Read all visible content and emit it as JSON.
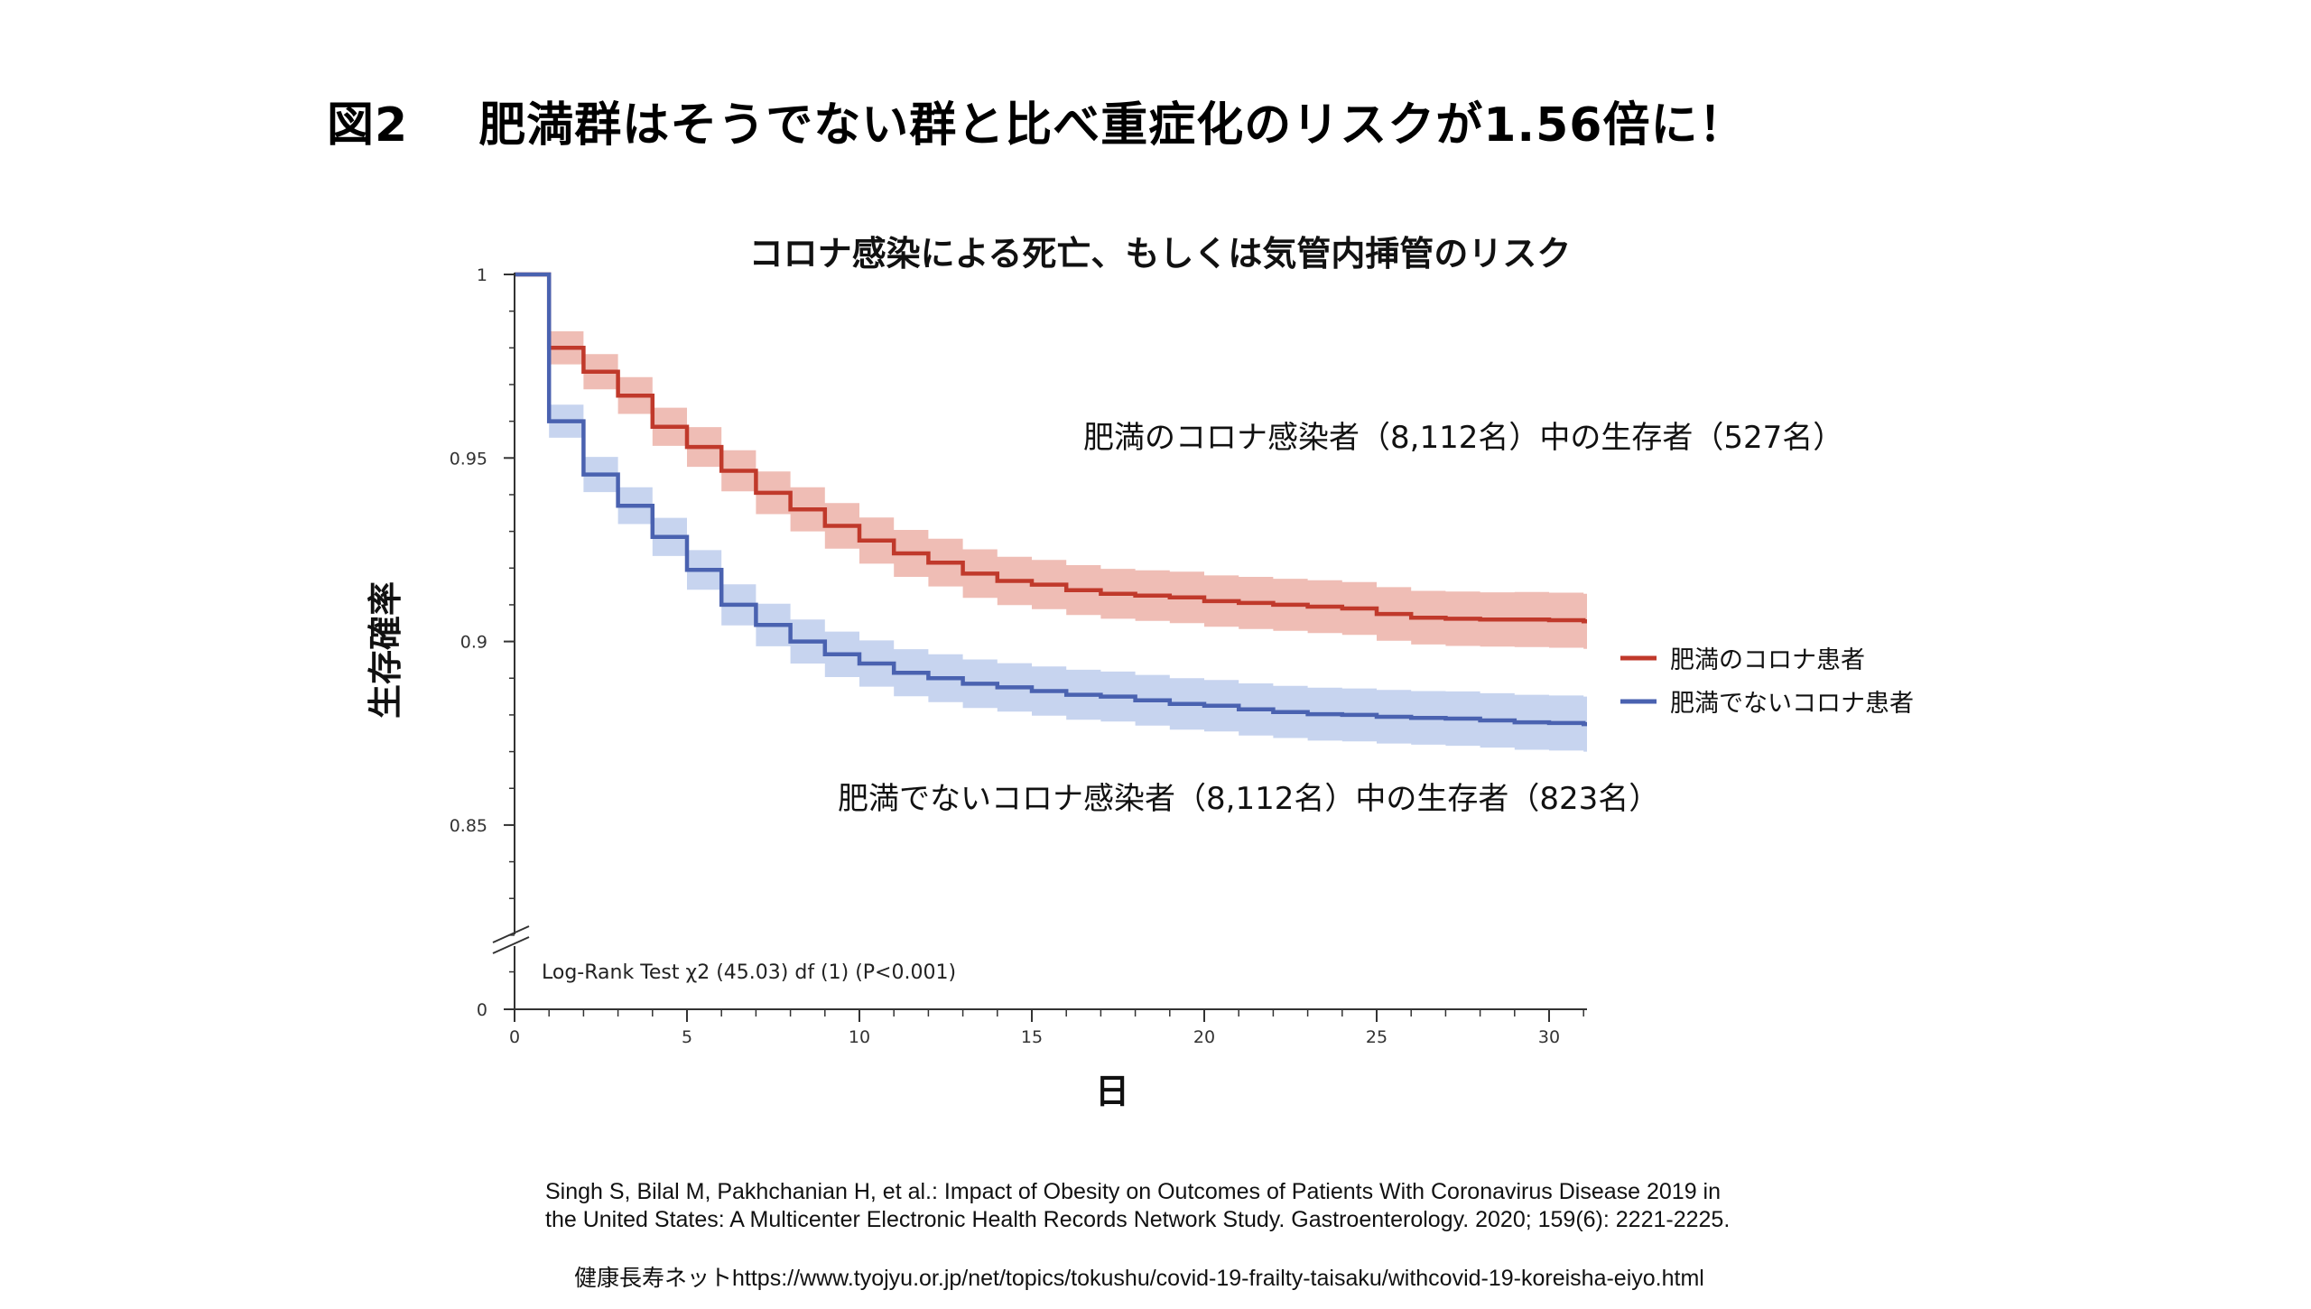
{
  "figure_label": "図2",
  "figure_title": "肥満群はそうでない群と比べ重症化のリスクが1.56倍に！",
  "chart_data": {
    "type": "line",
    "title": "コロナ感染による死亡、もしくは気管内挿管のリスク",
    "xlabel": "日",
    "ylabel": "生存確率",
    "xlim": [
      0,
      31
    ],
    "ylim": [
      0.8,
      1.0
    ],
    "y_axis_break": true,
    "x_ticks": [
      0,
      5,
      10,
      15,
      20,
      25,
      30
    ],
    "y_ticks": [
      1,
      0.95,
      0.9,
      0.85,
      0
    ],
    "y_tick_labels": [
      "1",
      "0.95",
      "0.9",
      "0.85",
      "0"
    ],
    "step": true,
    "legend": {
      "placement": "right"
    },
    "series": [
      {
        "name": "肥満のコロナ患者",
        "color": "#c0392b",
        "band_color": "#e9a79c",
        "x": [
          0,
          1,
          2,
          3,
          4,
          5,
          6,
          7,
          8,
          9,
          10,
          11,
          12,
          13,
          14,
          15,
          16,
          17,
          18,
          19,
          20,
          21,
          22,
          23,
          24,
          25,
          26,
          27,
          28,
          29,
          30,
          31
        ],
        "values": [
          1.0,
          0.98,
          0.9735,
          0.967,
          0.9585,
          0.953,
          0.9465,
          0.9405,
          0.936,
          0.9315,
          0.9275,
          0.924,
          0.9215,
          0.9185,
          0.9165,
          0.9155,
          0.914,
          0.913,
          0.9125,
          0.912,
          0.911,
          0.9105,
          0.91,
          0.9095,
          0.909,
          0.9075,
          0.9065,
          0.9062,
          0.906,
          0.906,
          0.9058,
          0.9055
        ],
        "band": [
          0.004,
          0.0045,
          0.0048,
          0.005,
          0.0052,
          0.0054,
          0.0056,
          0.0058,
          0.006,
          0.0062,
          0.0063,
          0.0064,
          0.0065,
          0.0066,
          0.0066,
          0.0067,
          0.0068,
          0.0068,
          0.0069,
          0.007,
          0.007,
          0.0071,
          0.0071,
          0.0072,
          0.0072,
          0.0073,
          0.0073,
          0.0074,
          0.0074,
          0.0075,
          0.0075,
          0.0075
        ]
      },
      {
        "name": "肥満でないコロナ患者",
        "color": "#4a62b0",
        "band_color": "#b4c6ea",
        "x": [
          0,
          1,
          2,
          3,
          4,
          5,
          6,
          7,
          8,
          9,
          10,
          11,
          12,
          13,
          14,
          15,
          16,
          17,
          18,
          19,
          20,
          21,
          22,
          23,
          24,
          25,
          26,
          27,
          28,
          29,
          30,
          31
        ],
        "values": [
          1.0,
          0.96,
          0.9455,
          0.937,
          0.9285,
          0.9195,
          0.91,
          0.9045,
          0.9,
          0.8965,
          0.894,
          0.8915,
          0.89,
          0.8885,
          0.8875,
          0.8865,
          0.8855,
          0.885,
          0.884,
          0.883,
          0.8825,
          0.8815,
          0.8808,
          0.8802,
          0.88,
          0.8795,
          0.8792,
          0.879,
          0.8785,
          0.878,
          0.8778,
          0.8775
        ],
        "band": [
          0.004,
          0.0045,
          0.0048,
          0.005,
          0.0052,
          0.0054,
          0.0056,
          0.0058,
          0.006,
          0.0062,
          0.0063,
          0.0064,
          0.0065,
          0.0066,
          0.0066,
          0.0067,
          0.0068,
          0.0068,
          0.0069,
          0.007,
          0.007,
          0.0071,
          0.0071,
          0.0072,
          0.0072,
          0.0073,
          0.0073,
          0.0074,
          0.0074,
          0.0075,
          0.0075,
          0.0075
        ]
      }
    ],
    "annotations": [
      "肥満のコロナ感染者（8,112名）中の生存者（527名）",
      "肥満でないコロナ感染者（8,112名）中の生存者（823名）",
      "Log-Rank Test χ2 (45.03) df (1) (P<0.001)"
    ]
  },
  "citation_line1": "Singh S, Bilal M, Pakhchanian H, et al.: Impact of Obesity on Outcomes of Patients With Coronavirus Disease 2019 in",
  "citation_line2": "the United States: A Multicenter Electronic Health Records Network Study. Gastroenterology. 2020; 159(6): 2221-2225.",
  "source_line": "健康長寿ネットhttps://www.tyojyu.or.jp/net/topics/tokushu/covid-19-frailty-taisaku/withcovid-19-koreisha-eiyo.html"
}
